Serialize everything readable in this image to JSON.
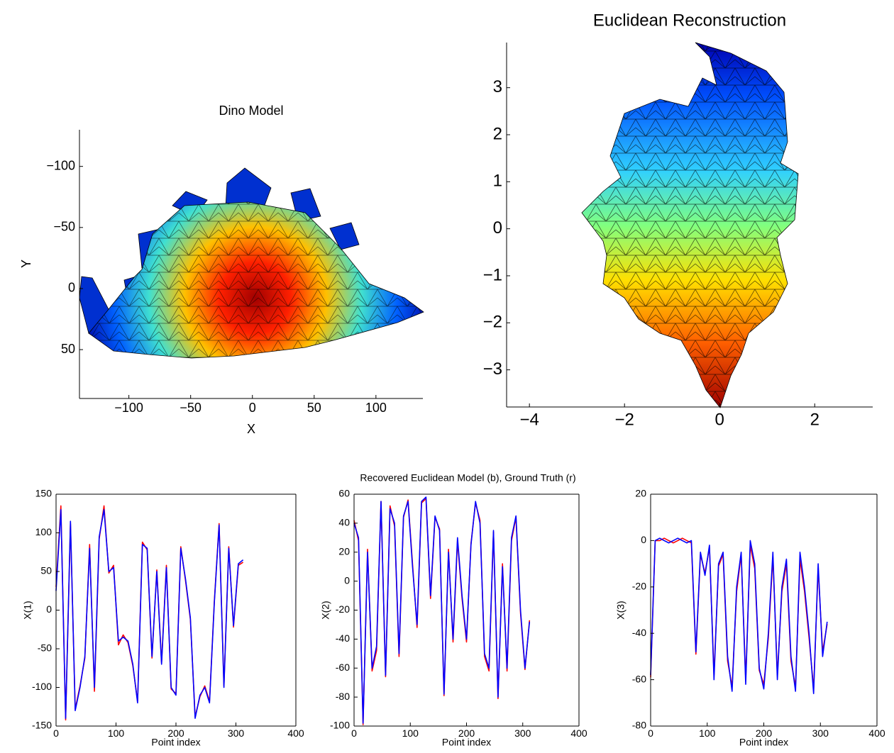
{
  "chart_data": [
    {
      "type": "surface",
      "title": "Dino Model",
      "xlabel": "X",
      "ylabel": "Y",
      "xlim": [
        -140,
        138
      ],
      "ylim": [
        -130,
        90
      ],
      "ydir": "reverse",
      "box": false,
      "xticks": [
        {
          "value": -100,
          "label": "−100"
        },
        {
          "value": -50,
          "label": "−50"
        },
        0,
        50,
        100
      ],
      "yticks": [
        {
          "value": -100,
          "label": "−100"
        },
        {
          "value": -50,
          "label": "−50"
        },
        0,
        50
      ]
    },
    {
      "type": "surface",
      "title": "Euclidean Reconstruction",
      "xlim": [
        -4.48,
        3.22
      ],
      "ylim": [
        -3.79,
        3.96
      ],
      "box": false,
      "xticks": [
        {
          "value": -4,
          "label": "−4"
        },
        {
          "value": -2,
          "label": "−2"
        },
        0,
        2
      ],
      "yticks": [
        {
          "value": -3,
          "label": "−3"
        },
        {
          "value": -2,
          "label": "−2"
        },
        {
          "value": -1,
          "label": "−1"
        },
        0,
        1,
        2,
        3
      ]
    },
    {
      "type": "line",
      "xlabel": "Point index",
      "ylabel": "X(1)",
      "box": true,
      "xlim": [
        0,
        400
      ],
      "ylim": [
        -150,
        150
      ],
      "xticks": [
        0,
        100,
        200,
        300,
        400
      ],
      "yticks": [
        -150,
        -100,
        -50,
        0,
        50,
        100,
        150
      ],
      "x": [
        0,
        8,
        16,
        24,
        32,
        40,
        48,
        56,
        64,
        72,
        80,
        88,
        96,
        104,
        112,
        120,
        128,
        136,
        144,
        152,
        160,
        168,
        176,
        184,
        192,
        200,
        208,
        216,
        224,
        232,
        240,
        248,
        256,
        264,
        272,
        280,
        288,
        296,
        304,
        312
      ],
      "series": [
        {
          "color": "#ff0000",
          "values": [
            30,
            135,
            -142,
            112,
            -128,
            -98,
            -62,
            85,
            -105,
            92,
            135,
            48,
            58,
            -45,
            -32,
            -42,
            -72,
            -118,
            88,
            78,
            -62,
            52,
            -68,
            58,
            -102,
            -108,
            82,
            38,
            -12,
            -138,
            -112,
            -98,
            -118,
            12,
            112,
            -98,
            82,
            -22,
            58,
            62
          ]
        },
        {
          "color": "#0000ff",
          "values": [
            25,
            130,
            -140,
            115,
            -130,
            -100,
            -60,
            80,
            -100,
            95,
            130,
            50,
            55,
            -40,
            -35,
            -40,
            -70,
            -120,
            85,
            80,
            -60,
            50,
            -70,
            55,
            -100,
            -110,
            80,
            40,
            -10,
            -140,
            -110,
            -100,
            -120,
            10,
            110,
            -100,
            80,
            -20,
            60,
            65
          ]
        }
      ]
    },
    {
      "type": "line",
      "title": "Recovered Euclidean Model (b), Ground Truth (r)",
      "xlabel": "Point index",
      "ylabel": "X(2)",
      "box": true,
      "xlim": [
        0,
        400
      ],
      "ylim": [
        -100,
        60
      ],
      "xticks": [
        0,
        100,
        200,
        300,
        400
      ],
      "yticks": [
        -100,
        -80,
        -60,
        -40,
        -20,
        0,
        20,
        40,
        60
      ],
      "x": [
        0,
        8,
        16,
        24,
        32,
        40,
        48,
        56,
        64,
        72,
        80,
        88,
        96,
        104,
        112,
        120,
        128,
        136,
        144,
        152,
        160,
        168,
        176,
        184,
        192,
        200,
        208,
        216,
        224,
        232,
        240,
        248,
        256,
        264,
        272,
        280,
        288,
        296,
        304,
        312
      ],
      "series": [
        {
          "color": "#ff0000",
          "values": [
            42,
            28,
            -99,
            22,
            -62,
            -48,
            55,
            -66,
            52,
            38,
            -52,
            44,
            56,
            12,
            -32,
            54,
            57,
            -12,
            44,
            36,
            -79,
            22,
            -42,
            28,
            -12,
            -42,
            26,
            54,
            42,
            -52,
            -62,
            34,
            -81,
            12,
            -62,
            28,
            44,
            -22,
            -61,
            -27
          ]
        },
        {
          "color": "#0000ff",
          "values": [
            40,
            30,
            -98,
            20,
            -60,
            -45,
            55,
            -65,
            50,
            40,
            -50,
            45,
            55,
            10,
            -30,
            55,
            58,
            -10,
            45,
            35,
            -78,
            20,
            -40,
            30,
            -10,
            -40,
            25,
            55,
            40,
            -50,
            -60,
            35,
            -80,
            10,
            -60,
            30,
            45,
            -20,
            -60,
            -28
          ]
        }
      ]
    },
    {
      "type": "line",
      "xlabel": "Point index",
      "ylabel": "X(3)",
      "box": true,
      "xlim": [
        0,
        400
      ],
      "ylim": [
        -80,
        20
      ],
      "xticks": [
        0,
        100,
        200,
        300,
        400
      ],
      "yticks": [
        -80,
        -60,
        -40,
        -20,
        0,
        20
      ],
      "x": [
        0,
        8,
        16,
        24,
        32,
        40,
        48,
        56,
        64,
        72,
        80,
        88,
        96,
        104,
        112,
        120,
        128,
        136,
        144,
        152,
        160,
        168,
        176,
        184,
        192,
        200,
        208,
        216,
        224,
        232,
        240,
        248,
        256,
        264,
        272,
        280,
        288,
        296,
        304,
        312
      ],
      "series": [
        {
          "color": "#ff0000",
          "values": [
            -59,
            0,
            0,
            1,
            0,
            -1,
            0,
            1,
            0,
            -1,
            -49,
            -6,
            -14,
            -3,
            -58,
            -11,
            -6,
            -52,
            -63,
            -22,
            -6,
            -60,
            -2,
            -12,
            -56,
            -62,
            -42,
            -7,
            -58,
            -22,
            -10,
            -52,
            -63,
            -8,
            -22,
            -42,
            -64,
            -12,
            -48,
            -36
          ]
        },
        {
          "color": "#0000ff",
          "values": [
            -58,
            0,
            1,
            0,
            -1,
            0,
            1,
            0,
            -1,
            0,
            -48,
            -5,
            -15,
            -2,
            -60,
            -10,
            -5,
            -50,
            -65,
            -20,
            -5,
            -62,
            0,
            -10,
            -55,
            -64,
            -40,
            -5,
            -60,
            -20,
            -8,
            -50,
            -65,
            -5,
            -20,
            -40,
            -66,
            -10,
            -50,
            -35
          ]
        }
      ]
    }
  ]
}
